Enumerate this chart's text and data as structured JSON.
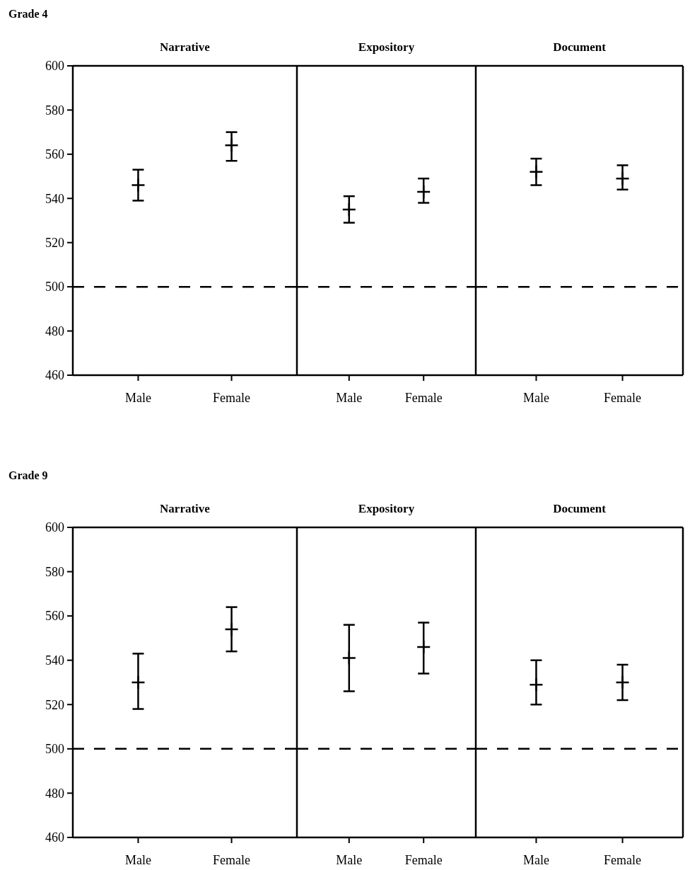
{
  "chart_data": [
    {
      "type": "scatter",
      "title": "Narrative",
      "annotations": [
        "Grade 4"
      ],
      "categories": [
        "Male",
        "Female"
      ],
      "values": [
        546,
        564
      ],
      "marker": "cross",
      "errors": [
        [
          539,
          553
        ],
        [
          557,
          570
        ]
      ],
      "color": "#000000",
      "ylim": [
        460,
        600
      ],
      "yticks": [
        460,
        480,
        500,
        520,
        540,
        560,
        580,
        600
      ],
      "ref_lines": [
        {
          "axis": "y",
          "value": 500,
          "line_style": "dashed"
        }
      ]
    },
    {
      "type": "scatter",
      "title": "Expository",
      "categories": [
        "Male",
        "Female"
      ],
      "values": [
        535,
        543
      ],
      "marker": "cross",
      "errors": [
        [
          529,
          541
        ],
        [
          538,
          549
        ]
      ],
      "color": "#000000",
      "ylim": [
        460,
        600
      ],
      "yticks": [
        460,
        480,
        500,
        520,
        540,
        560,
        580,
        600
      ],
      "tick_labels": "x",
      "ref_lines": [
        {
          "axis": "y",
          "value": 500,
          "line_style": "dashed"
        }
      ]
    },
    {
      "type": "scatter",
      "title": "Document",
      "categories": [
        "Male",
        "Female"
      ],
      "values": [
        552,
        549
      ],
      "marker": "cross",
      "errors": [
        [
          546,
          558
        ],
        [
          544,
          555
        ]
      ],
      "color": "#000000",
      "ylim": [
        460,
        600
      ],
      "yticks": [
        460,
        480,
        500,
        520,
        540,
        560,
        580,
        600
      ],
      "tick_labels": "x",
      "ref_lines": [
        {
          "axis": "y",
          "value": 500,
          "line_style": "dashed"
        }
      ]
    },
    {
      "type": "scatter",
      "title": "Narrative",
      "annotations": [
        "Grade 9"
      ],
      "categories": [
        "Male",
        "Female"
      ],
      "values": [
        530,
        554
      ],
      "marker": "cross",
      "errors": [
        [
          518,
          543
        ],
        [
          544,
          564
        ]
      ],
      "color": "#000000",
      "ylim": [
        460,
        600
      ],
      "yticks": [
        460,
        480,
        500,
        520,
        540,
        560,
        580,
        600
      ],
      "ref_lines": [
        {
          "axis": "y",
          "value": 500,
          "line_style": "dashed"
        }
      ]
    },
    {
      "type": "scatter",
      "title": "Expository",
      "categories": [
        "Male",
        "Female"
      ],
      "values": [
        541,
        546
      ],
      "marker": "cross",
      "errors": [
        [
          526,
          556
        ],
        [
          534,
          557
        ]
      ],
      "color": "#000000",
      "ylim": [
        460,
        600
      ],
      "yticks": [
        460,
        480,
        500,
        520,
        540,
        560,
        580,
        600
      ],
      "tick_labels": "x",
      "ref_lines": [
        {
          "axis": "y",
          "value": 500,
          "line_style": "dashed"
        }
      ]
    },
    {
      "type": "scatter",
      "title": "Document",
      "categories": [
        "Male",
        "Female"
      ],
      "values": [
        529,
        530
      ],
      "marker": "cross",
      "errors": [
        [
          520,
          540
        ],
        [
          522,
          538
        ]
      ],
      "color": "#000000",
      "ylim": [
        460,
        600
      ],
      "yticks": [
        460,
        480,
        500,
        520,
        540,
        560,
        580,
        600
      ],
      "tick_labels": "x",
      "ref_lines": [
        {
          "axis": "y",
          "value": 500,
          "line_style": "dashed"
        }
      ]
    }
  ]
}
